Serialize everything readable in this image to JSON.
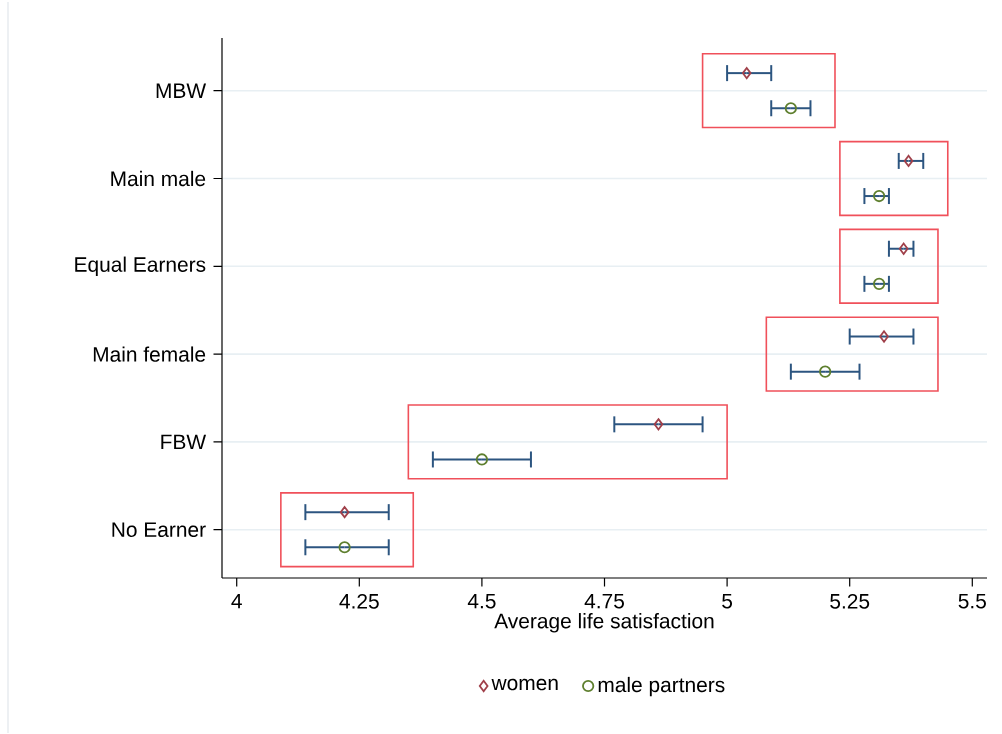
{
  "chart_data": {
    "type": "scatter",
    "orientation": "horizontal",
    "xlabel": "Average life satisfaction",
    "categories": [
      "MBW",
      "Main male",
      "Equal Earners",
      "Main female",
      "FBW",
      "No Earner"
    ],
    "xlim": [
      3.97,
      5.53
    ],
    "xticks": [
      4,
      4.25,
      4.5,
      4.75,
      5,
      5.25,
      5.5
    ],
    "grid": "y",
    "legend": "bottom",
    "series": [
      {
        "name": "women",
        "color": "#a0404a",
        "marker": "diamond",
        "values": [
          5.04,
          5.37,
          5.36,
          5.32,
          4.86,
          4.22
        ],
        "errors": [
          [
            5.0,
            5.09
          ],
          [
            5.35,
            5.4
          ],
          [
            5.33,
            5.38
          ],
          [
            5.25,
            5.38
          ],
          [
            4.77,
            4.95
          ],
          [
            4.14,
            4.31
          ]
        ]
      },
      {
        "name": "male partners",
        "color": "#5e7f2e",
        "marker": "circle",
        "values": [
          5.13,
          5.31,
          5.31,
          5.2,
          4.5,
          4.22
        ],
        "errors": [
          [
            5.09,
            5.17
          ],
          [
            5.28,
            5.33
          ],
          [
            5.28,
            5.33
          ],
          [
            5.13,
            5.27
          ],
          [
            4.4,
            4.6
          ],
          [
            4.14,
            4.31
          ]
        ]
      }
    ]
  }
}
